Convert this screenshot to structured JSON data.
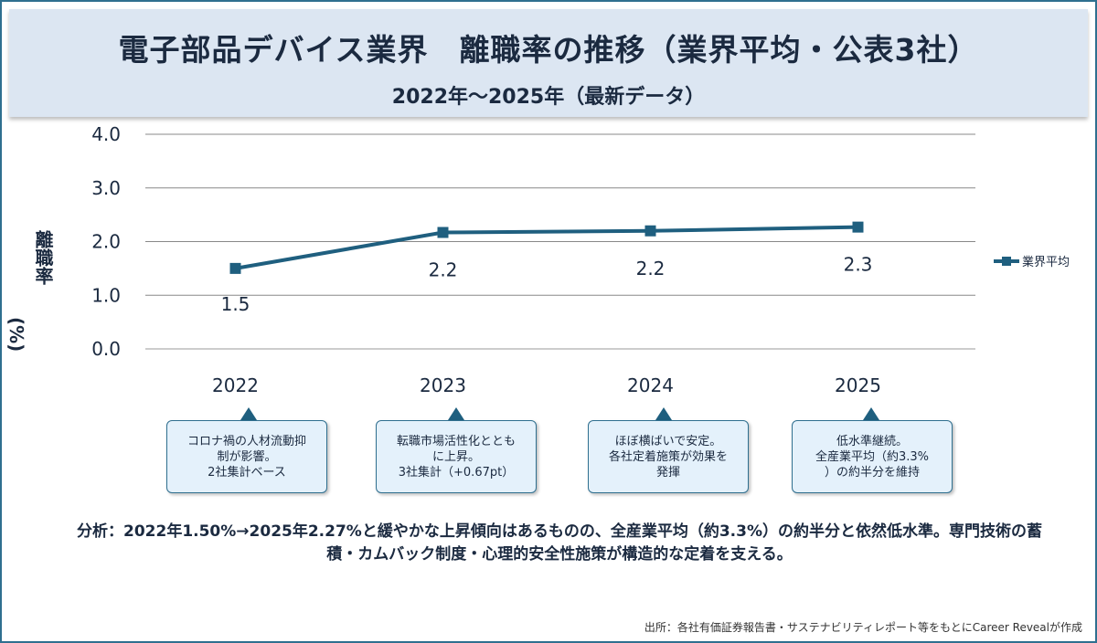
{
  "header": {
    "title": "電子部品デバイス業界　離職率の推移（業界平均・公表3社）",
    "subtitle": "2022年〜2025年（最新データ）"
  },
  "chart_data": {
    "type": "line",
    "categories": [
      "2022",
      "2023",
      "2024",
      "2025"
    ],
    "series": [
      {
        "name": "業界平均",
        "values": [
          1.5,
          2.17,
          2.2,
          2.27
        ],
        "labels": [
          "1.5",
          "2.2",
          "2.2",
          "2.3"
        ],
        "color": "#1f5f7f"
      }
    ],
    "ylabel": "離職率",
    "ylabel_unit": "(%)",
    "ylim": [
      0,
      4
    ],
    "yticks": [
      "0.0",
      "1.0",
      "2.0",
      "3.0",
      "4.0"
    ],
    "grid": true,
    "legend": "right"
  },
  "notes": [
    "コロナ禍の人材流動抑\n制が影響。\n2社集計ベース",
    "転職市場活性化ととも\nに上昇。\n3社集計（+0.67pt）",
    "ほぼ横ばいで安定。\n各社定着施策が効果を\n発揮",
    "低水準継続。\n全産業平均（約3.3%\n）の約半分を維持"
  ],
  "analysis": "分析：2022年1.50%→2025年2.27%と緩やかな上昇傾向はあるものの、全産業平均（約3.3%）の約半分と依然低水準。専門技術の蓄積・カムバック制度・心理的安全性施策が構造的な定着を支える。",
  "source": "出所：各社有価証券報告書・サステナビリティレポート等をもとにCareer Revealが作成"
}
